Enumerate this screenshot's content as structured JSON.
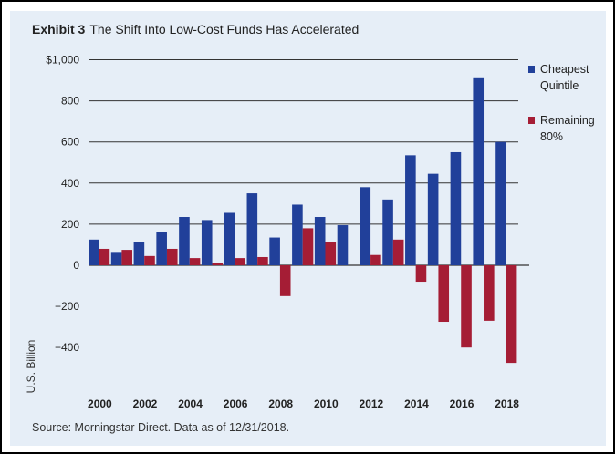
{
  "header": {
    "exhibit": "Exhibit 3",
    "title": "The Shift Into Low-Cost Funds Has Accelerated"
  },
  "footer": {
    "source": "Source: Morningstar Direct. Data as of 12/31/2018."
  },
  "colors": {
    "cheapest": "#21409a",
    "remaining": "#a51d35",
    "grid": "#333333",
    "zero_line": "#333333",
    "background": "#e6eef7"
  },
  "chart_data": {
    "type": "bar",
    "title": "The Shift Into Low-Cost Funds Has Accelerated",
    "xlabel": "",
    "ylabel": "U.S. Billion",
    "ylim": [
      -600,
      1000
    ],
    "y_ticks": [
      1000,
      800,
      600,
      400,
      200,
      0,
      -200,
      -400
    ],
    "y_tick_labels": [
      "$1,000",
      "800",
      "600",
      "400",
      "200",
      "0",
      "−200",
      "−400"
    ],
    "gridlines": [
      1000,
      800,
      600,
      400,
      200
    ],
    "categories": [
      "2000",
      "2001",
      "2002",
      "2003",
      "2004",
      "2005",
      "2006",
      "2007",
      "2008",
      "2009",
      "2010",
      "2011",
      "2012",
      "2013",
      "2014",
      "2015",
      "2016",
      "2017",
      "2018"
    ],
    "x_tick_labels": [
      "2000",
      "2002",
      "2004",
      "2006",
      "2008",
      "2010",
      "2012",
      "2014",
      "2016",
      "2018"
    ],
    "legend_position": "right",
    "series": [
      {
        "name": "Cheapest Quintile",
        "legend_lines": [
          "Cheapest",
          "Quintile"
        ],
        "color_key": "cheapest",
        "values": [
          125,
          65,
          115,
          160,
          235,
          220,
          255,
          350,
          135,
          295,
          235,
          195,
          380,
          320,
          535,
          445,
          550,
          910,
          600
        ]
      },
      {
        "name": "Remaining 80%",
        "legend_lines": [
          "Remaining",
          "80%"
        ],
        "color_key": "remaining",
        "values": [
          80,
          75,
          45,
          80,
          35,
          10,
          35,
          40,
          -150,
          180,
          115,
          0,
          50,
          125,
          -80,
          -275,
          -400,
          -270,
          -475
        ]
      }
    ]
  }
}
